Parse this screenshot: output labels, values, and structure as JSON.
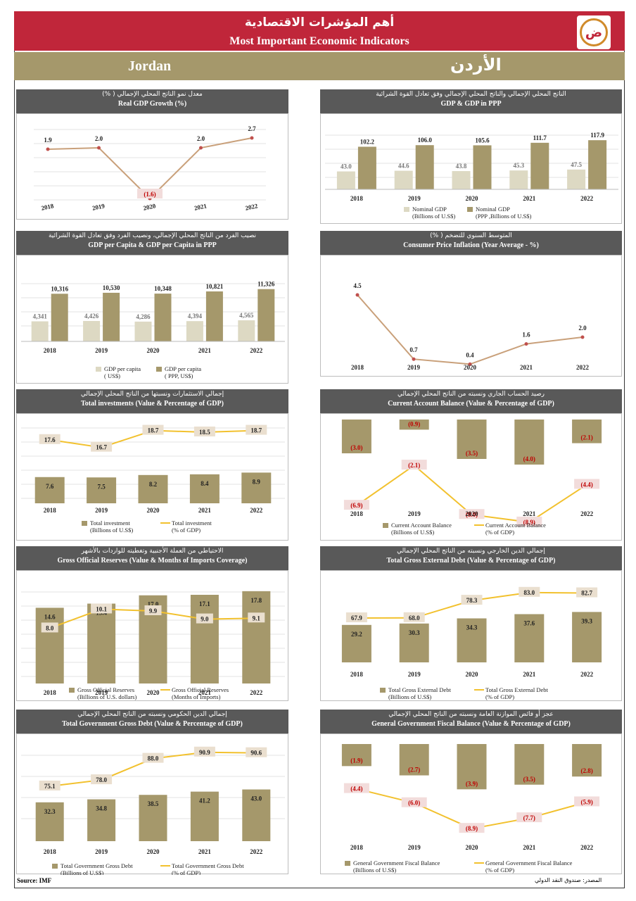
{
  "header": {
    "title_ar": "أهم المؤشرات الاقتصادية",
    "title_en": "Most Important Economic Indicators",
    "country_en": "Jordan",
    "country_ar": "الأردن",
    "logo_glyph": "ض"
  },
  "colors": {
    "red": "#c0263a",
    "gold": "#a5986b",
    "bar_dark": "#a5986b",
    "bar_light": "#ddd9c3",
    "line_gold": "#f2c12e",
    "line_red": "#c0504d",
    "neg_text": "#c00000",
    "label_bg": "#f2dcdb",
    "panel_header": "#595959"
  },
  "footer": {
    "source_en": "Source: IMF",
    "source_ar": "المصدر: صندوق النقد الدولي"
  },
  "chart_data": [
    {
      "id": "gdp_growth",
      "type": "line",
      "title": "Real GDP Growth (%)",
      "title_ar": "معدل نمو الناتج المحلي الإجمالي ( %)",
      "categories": [
        "2018",
        "2019",
        "2020",
        "2021",
        "2022"
      ],
      "series": [
        {
          "name": "Real GDP Growth (%)",
          "values": [
            1.9,
            2.0,
            -1.6,
            2.0,
            2.7
          ]
        }
      ],
      "labels": [
        "1.9",
        "2.0",
        "(1.6)",
        "2.0",
        "2.7"
      ],
      "ylim": [
        -2.0,
        3.0
      ],
      "legend": []
    },
    {
      "id": "gdp_ppp",
      "type": "bar",
      "title": "GDP & GDP in PPP",
      "title_ar": "الناتج المحلي الإجمالي والناتج المحلي الإجمالي وفق تعادل القوة الشرائية",
      "categories": [
        "2018",
        "2019",
        "2020",
        "2021",
        "2022"
      ],
      "series": [
        {
          "name": "Nominal GDP",
          "unit": "(Billions of U.S$)",
          "values": [
            43.0,
            44.6,
            43.8,
            45.3,
            47.5
          ],
          "labels": [
            "43.0",
            "44.6",
            "43.8",
            "45.3",
            "47.5"
          ]
        },
        {
          "name": "Nominal GDP",
          "unit": "(PPP ,Billions of U.S$)",
          "values": [
            102.2,
            106.0,
            105.6,
            111.7,
            117.9
          ],
          "labels": [
            "102.2",
            "106.0",
            "105.6",
            "111.7",
            "117.9"
          ]
        }
      ],
      "ylim": [
        0,
        130
      ]
    },
    {
      "id": "gdp_per_capita",
      "type": "bar",
      "title": "GDP per Capita & GDP per Capita in PPP",
      "title_ar": "نصيب الفرد من الناتج المحلي الإجمالي، ونصيب الفرد وفق تعادل القوة الشرائية",
      "categories": [
        "2018",
        "2019",
        "2020",
        "2021",
        "2022"
      ],
      "series": [
        {
          "name": "GDP per capita",
          "unit": "( US$)",
          "values": [
            4341,
            4426,
            4286,
            4394,
            4565
          ],
          "labels": [
            "4,341",
            "4,426",
            "4,286",
            "4,394",
            "4,565"
          ]
        },
        {
          "name": "GDP per capita",
          "unit": "( PPP, US$)",
          "values": [
            10316,
            10530,
            10348,
            10821,
            11326
          ],
          "labels": [
            "10,316",
            "10,530",
            "10,348",
            "10,821",
            "11,326"
          ]
        }
      ],
      "ylim": [
        0,
        12500
      ]
    },
    {
      "id": "inflation",
      "type": "line",
      "title": "Consumer Price Inflation (Year Average - %)",
      "title_ar": "المتوسط السنوي للتضخم ( %)",
      "categories": [
        "2018",
        "2019",
        "2020",
        "2021",
        "2022"
      ],
      "series": [
        {
          "name": "Inflation",
          "values": [
            4.5,
            0.7,
            0.4,
            1.6,
            2.0
          ]
        }
      ],
      "labels": [
        "4.5",
        "0.7",
        "0.4",
        "1.6",
        "2.0"
      ],
      "ylim": [
        0,
        5
      ],
      "legend": []
    },
    {
      "id": "investment",
      "type": "bar+line",
      "title": "Total investments (Value & Percentage of GDP)",
      "title_ar": "إجمالي الاستثمارات ونسبتها من الناتج المحلي الإجمالي",
      "categories": [
        "2018",
        "2019",
        "2020",
        "2021",
        "2022"
      ],
      "bars": {
        "name": "Total investment",
        "unit": "(Billions of U.S$)",
        "values": [
          7.6,
          7.5,
          8.2,
          8.4,
          8.9
        ],
        "labels": [
          "7.6",
          "7.5",
          "8.2",
          "8.4",
          "8.9"
        ]
      },
      "line": {
        "name": "Total investment",
        "unit": "(% of GDP)",
        "values": [
          17.6,
          16.7,
          18.7,
          18.5,
          18.7
        ],
        "labels": [
          "17.6",
          "16.7",
          "18.7",
          "18.5",
          "18.7"
        ]
      }
    },
    {
      "id": "current_account",
      "type": "bar+line",
      "title": "Current Account Balance (Value & Percentage of GDP)",
      "title_ar": "رصيد الحساب الجاري ونسبته من الناتج المحلي الإجمالي",
      "categories": [
        "2018",
        "2019",
        "2020",
        "2021",
        "2022"
      ],
      "bars": {
        "name": "Current Account Balance",
        "unit": "(Billions of U.S$)",
        "values": [
          -3.0,
          -0.9,
          -3.5,
          -4.0,
          -2.1
        ],
        "labels": [
          "(3.0)",
          "(0.9)",
          "(3.5)",
          "(4.0)",
          "(2.1)"
        ]
      },
      "line": {
        "name": "Current Account Balance",
        "unit": "(% of GDP)",
        "values": [
          -6.9,
          -2.1,
          -8.0,
          -8.9,
          -4.4
        ],
        "labels": [
          "(6.9)",
          "(2.1)",
          "(8.0)",
          "(8.9)",
          "(4.4)"
        ]
      }
    },
    {
      "id": "reserves",
      "type": "bar+line",
      "title": "Gross Official Reserves (Value & Months of Imports Coverage)",
      "title_ar": "الاحتياطي من العملة الأجنبية وتغطيته للواردات بالأشهر",
      "categories": [
        "2018",
        "2019",
        "2020",
        "2021",
        "2022"
      ],
      "bars": {
        "name": "Gross Official Reserves",
        "unit": "(Billions of U.S. dollars)",
        "values": [
          14.6,
          15.4,
          17.0,
          17.1,
          17.8
        ],
        "labels": [
          "14.6",
          "15.4",
          "17.0",
          "17.1",
          "17.8"
        ]
      },
      "line": {
        "name": "Gross Official Reserves",
        "unit": "(Months of Imports)",
        "values": [
          8.0,
          10.1,
          9.9,
          9.0,
          9.1
        ],
        "labels": [
          "8.0",
          "10.1",
          "9.9",
          "9.0",
          "9.1"
        ]
      }
    },
    {
      "id": "external_debt",
      "type": "bar+line",
      "title": "Total Gross External Debt (Value & Percentage of GDP)",
      "title_ar": "إجمالي الدين الخارجي ونسبته من الناتج المحلي الإجمالي",
      "categories": [
        "2018",
        "2019",
        "2020",
        "2021",
        "2022"
      ],
      "bars": {
        "name": "Total Gross External Debt",
        "unit": "(Billions of U.S$)",
        "values": [
          29.2,
          30.3,
          34.3,
          37.6,
          39.3
        ],
        "labels": [
          "29.2",
          "30.3",
          "34.3",
          "37.6",
          "39.3"
        ]
      },
      "line": {
        "name": "Total Gross External Debt",
        "unit": "(% of GDP)",
        "values": [
          67.9,
          68.0,
          78.3,
          83.0,
          82.7
        ],
        "labels": [
          "67.9",
          "68.0",
          "78.3",
          "83.0",
          "82.7"
        ]
      }
    },
    {
      "id": "gov_debt",
      "type": "bar+line",
      "title": "Total Government Gross Debt  (Value & Percentage of GDP)",
      "title_ar": "إجمالي الدين الحكومي ونسبته من الناتج المحلي الإجمالي",
      "categories": [
        "2018",
        "2019",
        "2020",
        "2021",
        "2022"
      ],
      "bars": {
        "name": "Total Government Gross Debt",
        "unit": "(Billions of U.S$)",
        "values": [
          32.3,
          34.8,
          38.5,
          41.2,
          43.0
        ],
        "labels": [
          "32.3",
          "34.8",
          "38.5",
          "41.2",
          "43.0"
        ]
      },
      "line": {
        "name": "Total Government Gross Debt",
        "unit": "(% of GDP)",
        "values": [
          75.1,
          78.0,
          88.0,
          90.9,
          90.6
        ],
        "labels": [
          "75.1",
          "78.0",
          "88.0",
          "90.9",
          "90.6"
        ]
      }
    },
    {
      "id": "fiscal_balance",
      "type": "bar+line",
      "title": "General Government Fiscal Balance (Value & Percentage of GDP)",
      "title_ar": "عجز أو فائض الموازنة العامة ونسبته من الناتج المحلي الإجمالي",
      "categories": [
        "2018",
        "2019",
        "2020",
        "2021",
        "2022"
      ],
      "bars": {
        "name": "General Government Fiscal Balance",
        "unit": "(Billions of U.S$)",
        "values": [
          -1.9,
          -2.7,
          -3.9,
          -3.5,
          -2.8
        ],
        "labels": [
          "(1.9)",
          "(2.7)",
          "(3.9)",
          "(3.5)",
          "(2.8)"
        ]
      },
      "line": {
        "name": "General Government Fiscal Balance",
        "unit": "(% of GDP)",
        "values": [
          -4.4,
          -6.0,
          -8.9,
          -7.7,
          -5.9
        ],
        "labels": [
          "(4.4)",
          "(6.0)",
          "(8.9)",
          "(7.7)",
          "(5.9)"
        ]
      }
    }
  ]
}
